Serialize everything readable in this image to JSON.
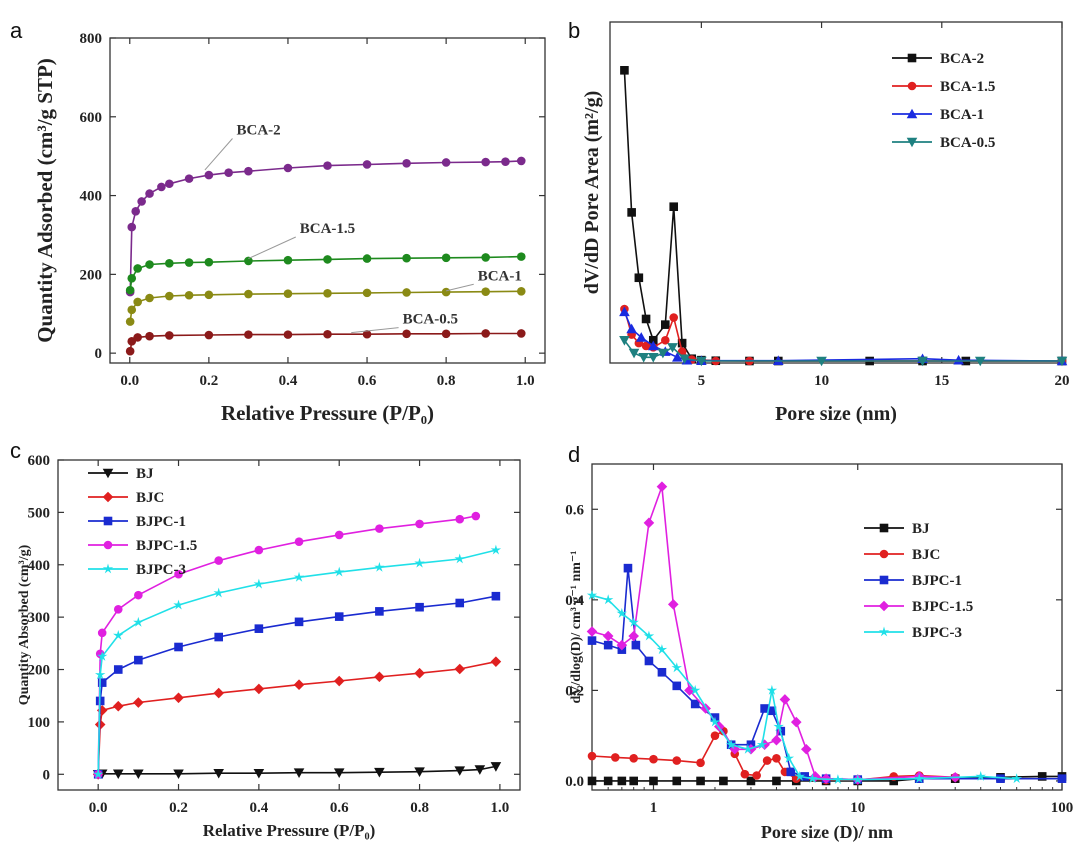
{
  "chart_data": [
    {
      "id": "a",
      "type": "scatter",
      "panel_label": "a",
      "xlabel": "Relative Pressure (P/P₀)",
      "ylabel": "Quantity Adsorbed (cm³/g STP)",
      "xlim": [
        -0.05,
        1.05
      ],
      "ylim": [
        -25,
        800
      ],
      "xticks": [
        0.0,
        0.2,
        0.4,
        0.6,
        0.8,
        1.0
      ],
      "xtick_labels": [
        "0.0",
        "0.2",
        "0.4",
        "0.6",
        "0.8",
        "1.0"
      ],
      "yticks": [
        0,
        200,
        400,
        600,
        800
      ],
      "ytick_labels": [
        "0",
        "200",
        "400",
        "600",
        "800"
      ],
      "legend": "none",
      "series": [
        {
          "name": "BCA-2",
          "color": "#7b2a8c",
          "marker": "circle",
          "x": [
            0.001,
            0.005,
            0.015,
            0.03,
            0.05,
            0.08,
            0.1,
            0.15,
            0.2,
            0.25,
            0.3,
            0.4,
            0.5,
            0.6,
            0.7,
            0.8,
            0.9,
            0.95,
            0.99
          ],
          "y": [
            155,
            320,
            360,
            385,
            405,
            422,
            430,
            443,
            452,
            458,
            462,
            470,
            476,
            479,
            482,
            484,
            485,
            486,
            488
          ]
        },
        {
          "name": "BCA-1.5",
          "color": "#1e8a1e",
          "marker": "circle",
          "x": [
            0.001,
            0.005,
            0.02,
            0.05,
            0.1,
            0.15,
            0.2,
            0.3,
            0.4,
            0.5,
            0.6,
            0.7,
            0.8,
            0.9,
            0.99
          ],
          "y": [
            160,
            190,
            215,
            225,
            228,
            230,
            231,
            234,
            236,
            238,
            240,
            241,
            242,
            243,
            245
          ]
        },
        {
          "name": "BCA-1",
          "color": "#8a8a14",
          "marker": "circle",
          "x": [
            0.001,
            0.005,
            0.02,
            0.05,
            0.1,
            0.15,
            0.2,
            0.3,
            0.4,
            0.5,
            0.6,
            0.7,
            0.8,
            0.9,
            0.99
          ],
          "y": [
            80,
            110,
            130,
            140,
            145,
            147,
            148,
            150,
            151,
            152,
            153,
            154,
            155,
            156,
            157
          ]
        },
        {
          "name": "BCA-0.5",
          "color": "#8b1a1a",
          "marker": "circle",
          "x": [
            0.001,
            0.005,
            0.02,
            0.05,
            0.1,
            0.2,
            0.3,
            0.4,
            0.5,
            0.6,
            0.7,
            0.8,
            0.9,
            0.99
          ],
          "y": [
            5,
            30,
            40,
            43,
            45,
            46,
            47,
            47,
            48,
            48,
            49,
            49,
            50,
            50
          ]
        }
      ],
      "annotations": [
        {
          "text": "BCA-2",
          "x": 0.28,
          "y": 555,
          "ax": 0.19,
          "ay": 465
        },
        {
          "text": "BCA-1.5",
          "x": 0.44,
          "y": 305,
          "ax": 0.3,
          "ay": 240
        },
        {
          "text": "BCA-1",
          "x": 0.89,
          "y": 185,
          "ax": 0.8,
          "ay": 158
        },
        {
          "text": "BCA-0.5",
          "x": 0.7,
          "y": 75,
          "ax": 0.56,
          "ay": 52
        }
      ]
    },
    {
      "id": "b",
      "type": "line",
      "panel_label": "b",
      "xlabel": "Pore size (nm)",
      "ylabel": "dV/dD Pore Area (m²/g)",
      "xlim": [
        1.2,
        20
      ],
      "ylim": [
        0,
        12
      ],
      "xticks": [
        5,
        10,
        15,
        20
      ],
      "xtick_labels": [
        "5",
        "10",
        "15",
        "20"
      ],
      "yticks": [],
      "ytick_labels": [],
      "legend": "top-right",
      "series": [
        {
          "name": "BCA-2",
          "color": "#111111",
          "marker": "square",
          "x": [
            1.8,
            2.1,
            2.4,
            2.7,
            3.0,
            3.5,
            3.85,
            4.2,
            4.6,
            5.0,
            5.6,
            7.0,
            8.2,
            12,
            14.2,
            16,
            20
          ],
          "y": [
            10.3,
            5.3,
            3.0,
            1.55,
            0.8,
            1.35,
            5.5,
            0.7,
            0.15,
            0.1,
            0.08,
            0.07,
            0.07,
            0.07,
            0.07,
            0.07,
            0.07
          ]
        },
        {
          "name": "BCA-1.5",
          "color": "#e02020",
          "marker": "circle",
          "x": [
            1.8,
            2.1,
            2.4,
            2.7,
            3.0,
            3.5,
            3.85,
            4.2,
            4.6,
            5.6,
            7.0,
            20
          ],
          "y": [
            1.9,
            1.0,
            0.7,
            0.6,
            0.55,
            0.8,
            1.6,
            0.4,
            0.12,
            0.07,
            0.07,
            0.07
          ]
        },
        {
          "name": "BCA-1",
          "color": "#1a2be0",
          "marker": "triangle-up",
          "x": [
            1.8,
            2.1,
            2.5,
            3.0,
            3.5,
            4.0,
            4.4,
            5.0,
            8.2,
            14.2,
            15.7,
            20
          ],
          "y": [
            1.8,
            1.2,
            0.9,
            0.6,
            0.4,
            0.2,
            0.1,
            0.08,
            0.08,
            0.15,
            0.1,
            0.07
          ]
        },
        {
          "name": "BCA-0.5",
          "color": "#1e8080",
          "marker": "triangle-down",
          "x": [
            1.8,
            2.2,
            2.6,
            3.0,
            3.4,
            3.8,
            4.3,
            5.0,
            10,
            14.2,
            16.6,
            20
          ],
          "y": [
            0.8,
            0.35,
            0.2,
            0.2,
            0.35,
            0.55,
            0.15,
            0.07,
            0.07,
            0.07,
            0.07,
            0.07
          ]
        }
      ]
    },
    {
      "id": "c",
      "type": "line",
      "panel_label": "c",
      "xlabel": "Relative Pressure (P/P₀)",
      "ylabel": "Quantity Absorbed (cm³/g)",
      "xlim": [
        -0.1,
        1.05
      ],
      "ylim": [
        -30,
        600
      ],
      "xticks": [
        0.0,
        0.2,
        0.4,
        0.6,
        0.8,
        1.0
      ],
      "xtick_labels": [
        "0.0",
        "0.2",
        "0.4",
        "0.6",
        "0.8",
        "1.0"
      ],
      "yticks": [
        0,
        100,
        200,
        300,
        400,
        500,
        600
      ],
      "ytick_labels": [
        "0",
        "100",
        "200",
        "300",
        "400",
        "500",
        "600"
      ],
      "legend": "top-left",
      "series": [
        {
          "name": "BJ",
          "color": "#111111",
          "marker": "triangle-down",
          "x": [
            0.0,
            0.01,
            0.05,
            0.1,
            0.2,
            0.3,
            0.4,
            0.5,
            0.6,
            0.7,
            0.8,
            0.9,
            0.95,
            0.99
          ],
          "y": [
            0,
            1,
            1,
            1,
            1,
            2,
            2,
            3,
            3,
            4,
            5,
            7,
            9,
            15
          ]
        },
        {
          "name": "BJC",
          "color": "#e02020",
          "marker": "diamond",
          "x": [
            0.0,
            0.005,
            0.01,
            0.05,
            0.1,
            0.2,
            0.3,
            0.4,
            0.5,
            0.6,
            0.7,
            0.8,
            0.9,
            0.99
          ],
          "y": [
            0,
            95,
            122,
            130,
            137,
            146,
            155,
            163,
            171,
            178,
            186,
            193,
            201,
            215
          ]
        },
        {
          "name": "BJPC-1",
          "color": "#1a2bd0",
          "marker": "square",
          "x": [
            0.0,
            0.005,
            0.01,
            0.05,
            0.1,
            0.2,
            0.3,
            0.4,
            0.5,
            0.6,
            0.7,
            0.8,
            0.9,
            0.99
          ],
          "y": [
            0,
            140,
            175,
            200,
            218,
            243,
            262,
            278,
            291,
            301,
            311,
            319,
            327,
            340
          ]
        },
        {
          "name": "BJPC-1.5",
          "color": "#e020e0",
          "marker": "circle",
          "x": [
            0.0,
            0.005,
            0.01,
            0.05,
            0.1,
            0.2,
            0.3,
            0.4,
            0.5,
            0.6,
            0.7,
            0.8,
            0.9,
            0.94
          ],
          "y": [
            0,
            230,
            270,
            315,
            342,
            382,
            408,
            428,
            444,
            457,
            469,
            478,
            487,
            493
          ]
        },
        {
          "name": "BJPC-3",
          "color": "#20e0e8",
          "marker": "star",
          "x": [
            0.0,
            0.005,
            0.01,
            0.05,
            0.1,
            0.2,
            0.3,
            0.4,
            0.5,
            0.6,
            0.7,
            0.8,
            0.9,
            0.99
          ],
          "y": [
            0,
            190,
            225,
            265,
            290,
            323,
            346,
            363,
            376,
            386,
            395,
            403,
            411,
            428
          ]
        }
      ]
    },
    {
      "id": "d",
      "type": "line",
      "panel_label": "d",
      "xlabel": "Pore size (D)/ nm",
      "ylabel": "dV/dlog(D)/ cm³ g⁻¹ nm⁻¹",
      "xscale": "log",
      "xlim": [
        0.5,
        100
      ],
      "ylim": [
        -0.02,
        0.7
      ],
      "xticks": [
        1,
        10,
        100
      ],
      "xtick_labels": [
        "1",
        "10",
        "100"
      ],
      "yticks": [
        0.0,
        0.2,
        0.4,
        0.6
      ],
      "ytick_labels": [
        "0.0",
        "0.2",
        "0.4",
        "0.6"
      ],
      "legend": "right",
      "series": [
        {
          "name": "BJ",
          "color": "#111111",
          "marker": "square",
          "x": [
            0.5,
            0.6,
            0.7,
            0.8,
            1.0,
            1.3,
            1.7,
            2.2,
            3,
            4,
            5,
            7,
            10,
            15,
            20,
            30,
            50,
            80,
            100
          ],
          "y": [
            0,
            0,
            0,
            0,
            0,
            0,
            0,
            0,
            0,
            0,
            0,
            0,
            0,
            0,
            0.005,
            0.005,
            0.008,
            0.01,
            0.01
          ]
        },
        {
          "name": "BJC",
          "color": "#e02020",
          "marker": "circle",
          "x": [
            0.5,
            0.65,
            0.8,
            1.0,
            1.3,
            1.7,
            2.0,
            2.2,
            2.5,
            2.8,
            3.2,
            3.6,
            4.0,
            4.4,
            5,
            7,
            10,
            15,
            20,
            30
          ],
          "y": [
            0.055,
            0.052,
            0.05,
            0.048,
            0.045,
            0.04,
            0.1,
            0.11,
            0.06,
            0.015,
            0.012,
            0.045,
            0.05,
            0.02,
            0.005,
            0.002,
            0.002,
            0.01,
            0.012,
            0.008
          ]
        },
        {
          "name": "BJPC-1",
          "color": "#1a2bd0",
          "marker": "square",
          "x": [
            0.5,
            0.6,
            0.7,
            0.75,
            0.82,
            0.95,
            1.1,
            1.3,
            1.6,
            2.0,
            2.4,
            3.0,
            3.5,
            3.8,
            4.2,
            4.7,
            5.5,
            7,
            10,
            20,
            50,
            100
          ],
          "y": [
            0.31,
            0.3,
            0.29,
            0.47,
            0.3,
            0.265,
            0.24,
            0.21,
            0.17,
            0.14,
            0.08,
            0.08,
            0.16,
            0.155,
            0.11,
            0.02,
            0.01,
            0.005,
            0.003,
            0.005,
            0.005,
            0.005
          ]
        },
        {
          "name": "BJPC-1.5",
          "color": "#e020e0",
          "marker": "diamond",
          "x": [
            0.5,
            0.6,
            0.7,
            0.8,
            0.95,
            1.1,
            1.25,
            1.5,
            1.8,
            2.1,
            2.5,
            3.0,
            3.5,
            4.0,
            4.4,
            5.0,
            5.6,
            6.2,
            7,
            10,
            20,
            30
          ],
          "y": [
            0.33,
            0.32,
            0.3,
            0.32,
            0.57,
            0.65,
            0.39,
            0.2,
            0.16,
            0.12,
            0.07,
            0.07,
            0.08,
            0.09,
            0.18,
            0.13,
            0.07,
            0.01,
            0.005,
            0.003,
            0.01,
            0.008
          ]
        },
        {
          "name": "BJPC-3",
          "color": "#20e0e8",
          "marker": "star",
          "x": [
            0.5,
            0.6,
            0.7,
            0.8,
            0.95,
            1.1,
            1.3,
            1.6,
            2.0,
            2.4,
            2.9,
            3.4,
            3.8,
            4.1,
            4.6,
            5.2,
            6,
            8,
            10,
            20,
            40,
            60
          ],
          "y": [
            0.41,
            0.4,
            0.37,
            0.35,
            0.32,
            0.29,
            0.25,
            0.2,
            0.13,
            0.08,
            0.07,
            0.08,
            0.2,
            0.12,
            0.05,
            0.01,
            0.005,
            0.003,
            0.003,
            0.005,
            0.01,
            0.005
          ]
        }
      ]
    }
  ]
}
